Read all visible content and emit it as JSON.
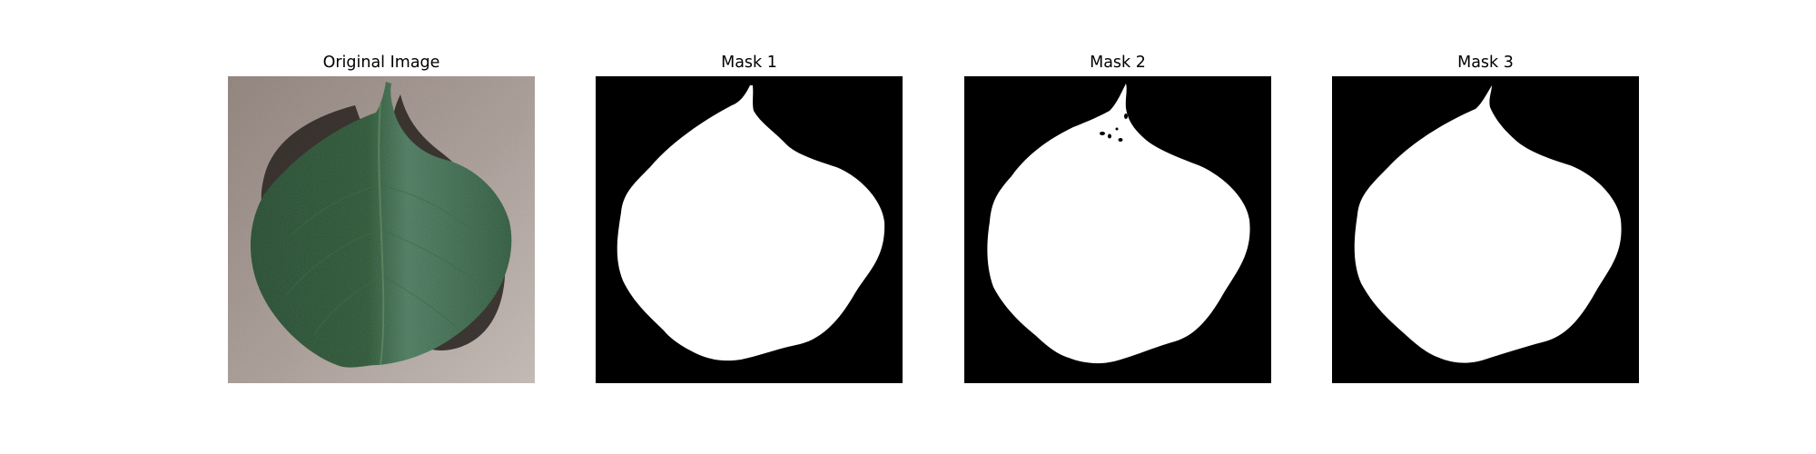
{
  "figure": {
    "panels": [
      {
        "title": "Original Image",
        "content": "leaf-photo"
      },
      {
        "title": "Mask 1",
        "content": "binary-mask"
      },
      {
        "title": "Mask 2",
        "content": "binary-mask"
      },
      {
        "title": "Mask 3",
        "content": "binary-mask"
      }
    ]
  },
  "colors": {
    "mask_background": "#000000",
    "mask_foreground": "#ffffff",
    "leaf_dark": "#1f4a2c",
    "leaf_light": "#4d7a5c",
    "photo_background": "#a89a94",
    "shadow": "#2b2622"
  }
}
